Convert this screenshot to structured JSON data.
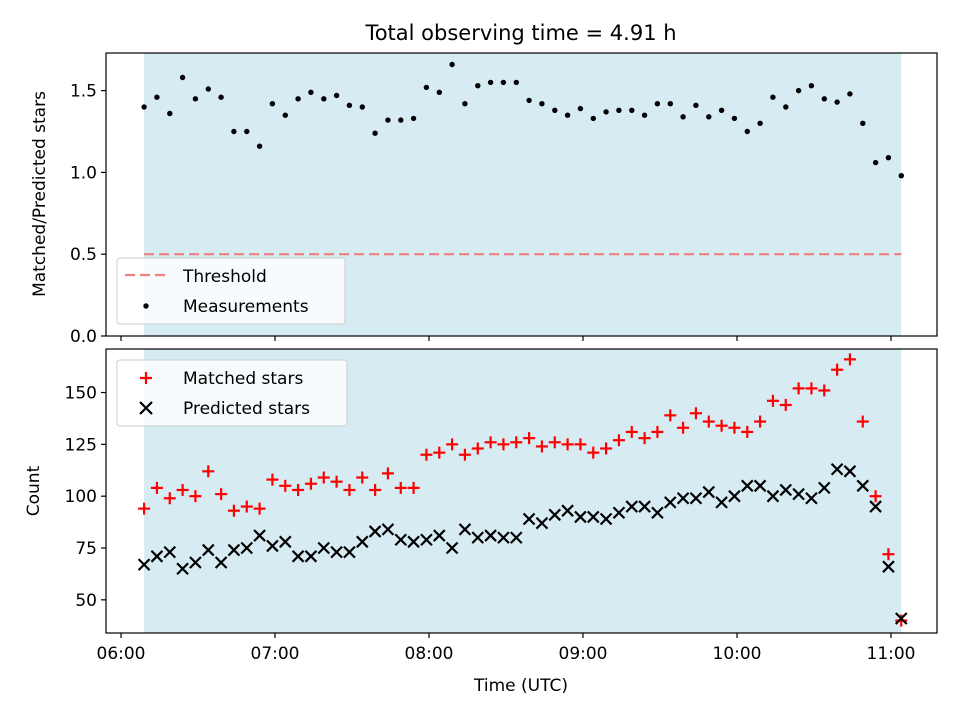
{
  "chart_data": [
    {
      "type": "scatter",
      "title": "Total observing time = 4.91 h",
      "xlabel": "",
      "ylabel": "Matched/Predicted stars",
      "xlim": [
        "06:00",
        "11:00"
      ],
      "ylim": [
        0,
        1.73
      ],
      "yticks": [
        0.0,
        0.5,
        1.0,
        1.5
      ],
      "ytick_labels": [
        "0.0",
        "0.5",
        "1.0",
        "1.5"
      ],
      "xticks": [
        "06:00",
        "07:00",
        "08:00",
        "09:00",
        "10:00",
        "11:00"
      ],
      "observing_window": [
        "06:09",
        "11:04"
      ],
      "legend_position": "lower-left",
      "threshold": {
        "name": "Threshold",
        "value": 0.5,
        "color": "#f08080"
      },
      "series": [
        {
          "name": "Measurements",
          "color": "#000000",
          "values": [
            1.4,
            1.46,
            1.36,
            1.58,
            1.45,
            1.51,
            1.46,
            1.25,
            1.25,
            1.16,
            1.42,
            1.35,
            1.45,
            1.49,
            1.45,
            1.47,
            1.41,
            1.4,
            1.24,
            1.32,
            1.32,
            1.33,
            1.52,
            1.49,
            1.66,
            1.42,
            1.53,
            1.55,
            1.55,
            1.55,
            1.44,
            1.42,
            1.38,
            1.35,
            1.39,
            1.33,
            1.37,
            1.38,
            1.38,
            1.35,
            1.42,
            1.42,
            1.34,
            1.41,
            1.34,
            1.38,
            1.33,
            1.25,
            1.3,
            1.46,
            1.4,
            1.5,
            1.53,
            1.45,
            1.43,
            1.48,
            1.3,
            1.06,
            1.09,
            0.98
          ]
        }
      ]
    },
    {
      "type": "scatter",
      "title": "",
      "xlabel": "Time (UTC)",
      "ylabel": "Count",
      "xlim": [
        "06:00",
        "11:00"
      ],
      "ylim": [
        34,
        171
      ],
      "yticks": [
        50,
        75,
        100,
        125,
        150
      ],
      "ytick_labels": [
        "50",
        "75",
        "100",
        "125",
        "150"
      ],
      "xticks": [
        "06:00",
        "07:00",
        "08:00",
        "09:00",
        "10:00",
        "11:00"
      ],
      "xtick_labels": [
        "06:00",
        "07:00",
        "08:00",
        "09:00",
        "10:00",
        "11:00"
      ],
      "observing_window": [
        "06:09",
        "11:04"
      ],
      "legend_position": "top-left",
      "series": [
        {
          "name": "Matched stars",
          "marker": "plus",
          "color": "#ff0000",
          "values": [
            94,
            104,
            99,
            103,
            100,
            112,
            101,
            93,
            95,
            94,
            108,
            105,
            103,
            106,
            109,
            107,
            103,
            109,
            103,
            111,
            104,
            104,
            120,
            121,
            125,
            120,
            123,
            126,
            125,
            126,
            128,
            124,
            126,
            125,
            125,
            121,
            123,
            127,
            131,
            128,
            131,
            139,
            133,
            140,
            136,
            134,
            133,
            131,
            136,
            146,
            144,
            152,
            152,
            151,
            161,
            166,
            136,
            100,
            72,
            40
          ]
        },
        {
          "name": "Predicted stars",
          "marker": "x",
          "color": "#000000",
          "values": [
            67,
            71,
            73,
            65,
            68,
            74,
            68,
            74,
            75,
            81,
            76,
            78,
            71,
            71,
            75,
            73,
            73,
            78,
            83,
            84,
            79,
            78,
            79,
            81,
            75,
            84,
            80,
            81,
            80,
            80,
            89,
            87,
            91,
            93,
            90,
            90,
            89,
            92,
            95,
            95,
            92,
            97,
            99,
            99,
            102,
            97,
            100,
            105,
            105,
            100,
            103,
            101,
            99,
            104,
            113,
            112,
            105,
            95,
            66,
            41
          ]
        }
      ]
    }
  ]
}
